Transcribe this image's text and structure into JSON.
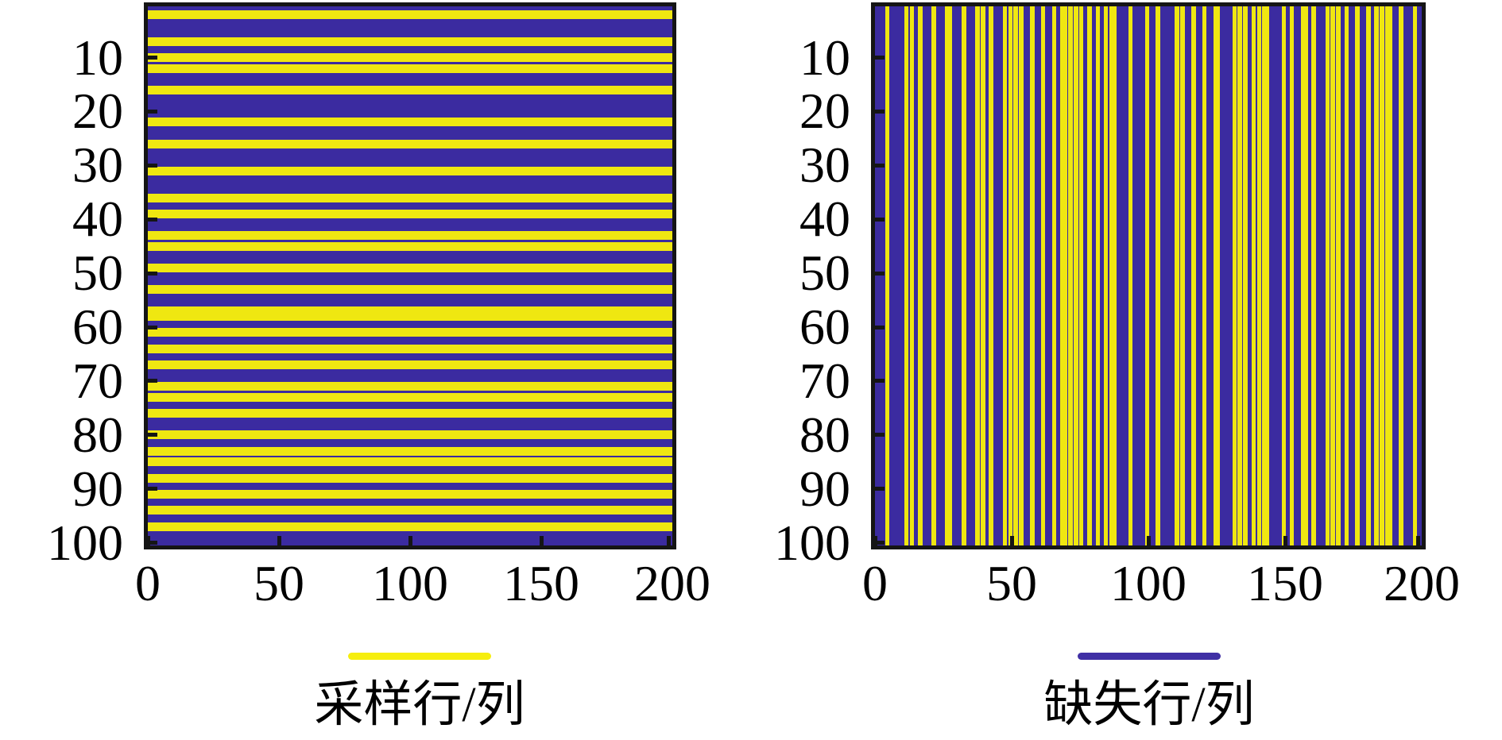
{
  "figure": {
    "background": "#ffffff",
    "axis_color": "#151515",
    "text_color": "#000000"
  },
  "chart_data": [
    {
      "type": "heatmap",
      "subtype": "sampling_mask",
      "stripe_orientation": "horizontal",
      "n_rows": 100,
      "n_cols": 200,
      "x_range": [
        0,
        200
      ],
      "y_range": [
        1,
        100
      ],
      "x_ticks": [
        0,
        50,
        100,
        150,
        200
      ],
      "y_ticks": [
        10,
        20,
        30,
        40,
        50,
        60,
        70,
        80,
        90,
        100
      ],
      "grid": false,
      "colors": {
        "sampled": "#efe711",
        "missing": "#3b2ba0"
      },
      "sampled_rows": [
        2,
        7,
        10,
        12,
        16,
        22,
        26,
        31,
        36,
        39,
        43,
        45,
        49,
        53,
        57,
        58,
        61,
        64,
        67,
        71,
        73,
        76,
        80,
        83,
        85,
        88,
        91,
        94,
        97
      ],
      "legend": {
        "label": "采样行/列",
        "line_color": "#f6ee0e",
        "swatch": "sampled",
        "position": "below"
      }
    },
    {
      "type": "heatmap",
      "subtype": "sampling_mask",
      "stripe_orientation": "vertical",
      "n_rows": 100,
      "n_cols": 200,
      "x_range": [
        0,
        200
      ],
      "y_range": [
        1,
        100
      ],
      "x_ticks": [
        0,
        50,
        100,
        150,
        200
      ],
      "y_ticks": [
        10,
        20,
        30,
        40,
        50,
        60,
        70,
        80,
        90,
        100
      ],
      "grid": false,
      "colors": {
        "sampled": "#efe711",
        "missing": "#3b2ba0"
      },
      "sampled_cols": [
        5,
        12,
        14,
        17,
        22,
        27,
        28,
        33,
        38,
        40,
        43,
        48,
        50,
        52,
        54,
        58,
        62,
        66,
        69,
        70,
        72,
        74,
        76,
        79,
        82,
        85,
        87,
        88,
        94,
        100,
        104,
        111,
        113,
        117,
        121,
        125,
        126,
        132,
        134,
        136,
        139,
        141,
        143,
        144,
        150,
        153,
        157,
        158,
        161,
        166,
        168,
        170,
        173,
        177,
        181,
        184,
        186,
        188,
        189,
        193,
        198
      ],
      "legend": {
        "label": "缺失行/列",
        "line_color": "#4030a5",
        "swatch": "missing",
        "position": "below"
      }
    }
  ]
}
